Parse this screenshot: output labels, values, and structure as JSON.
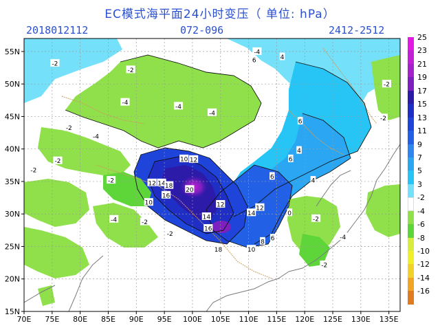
{
  "title": "EC模式海平面24小时变压（ 单位: hPa）",
  "init_time": "2018012112",
  "forecast_hours": "072-096",
  "valid_range": "2412-2512",
  "lat_labels": [
    "55N",
    "50N",
    "45N",
    "40N",
    "35N",
    "30N",
    "25N",
    "20N",
    "15N"
  ],
  "lon_labels": [
    "70E",
    "75E",
    "80E",
    "85E",
    "90E",
    "95E",
    "100E",
    "105E",
    "110E",
    "115E",
    "120E",
    "125E",
    "130E",
    "135E"
  ],
  "colorbar": [
    {
      "label": "25",
      "color": "#e31ae3"
    },
    {
      "label": "23",
      "color": "#c21fd6"
    },
    {
      "label": "21",
      "color": "#a322c9"
    },
    {
      "label": "19",
      "color": "#7e1fbf"
    },
    {
      "label": "17",
      "color": "#2c1aa8"
    },
    {
      "label": "15",
      "color": "#1f2fc6"
    },
    {
      "label": "13",
      "color": "#1e44d9"
    },
    {
      "label": "11",
      "color": "#2260e6"
    },
    {
      "label": "9",
      "color": "#2f86ee"
    },
    {
      "label": "7",
      "color": "#2aa6f3"
    },
    {
      "label": "5",
      "color": "#27c4f6"
    },
    {
      "label": "3",
      "color": "#74e0fa"
    },
    {
      "label": "-2",
      "color": "#ffffff"
    },
    {
      "label": "-4",
      "color": "#8fe04a"
    },
    {
      "label": "-6",
      "color": "#5ed63a"
    },
    {
      "label": "-8",
      "color": "#d7ec3c"
    },
    {
      "label": "-10",
      "color": "#f2ee2a"
    },
    {
      "label": "-12",
      "color": "#f2d22a"
    },
    {
      "label": "-14",
      "color": "#f0a526"
    },
    {
      "label": "-16",
      "color": "#e07b22"
    }
  ],
  "contour_labels": [
    {
      "text": "10",
      "lon": 98.5,
      "lat": 38.5
    },
    {
      "text": "12",
      "lon": 100.2,
      "lat": 38.4
    },
    {
      "text": "12",
      "lon": 92.8,
      "lat": 34.8
    },
    {
      "text": "14",
      "lon": 94.5,
      "lat": 34.8
    },
    {
      "text": "18",
      "lon": 95.8,
      "lat": 34.4
    },
    {
      "text": "16",
      "lon": 95.3,
      "lat": 32.9
    },
    {
      "text": "20",
      "lon": 99.5,
      "lat": 33.8
    },
    {
      "text": "10",
      "lon": 92.2,
      "lat": 31.8
    },
    {
      "text": "14",
      "lon": 102.5,
      "lat": 29.6
    },
    {
      "text": "16",
      "lon": 102.8,
      "lat": 27.8
    },
    {
      "text": "12",
      "lon": 105.0,
      "lat": 31.5
    },
    {
      "text": "14",
      "lon": 110.5,
      "lat": 30.2
    },
    {
      "text": "12",
      "lon": 112.0,
      "lat": 31.0
    },
    {
      "text": "18",
      "lon": 104.6,
      "lat": 24.6
    },
    {
      "text": "10",
      "lon": 110.5,
      "lat": 24.6
    },
    {
      "text": "6",
      "lon": 114.3,
      "lat": 26.3
    },
    {
      "text": "8",
      "lon": 112.5,
      "lat": 25.8
    },
    {
      "text": "6",
      "lon": 119.2,
      "lat": 44.3
    },
    {
      "text": "6",
      "lon": 114.2,
      "lat": 35.8
    },
    {
      "text": "4",
      "lon": 119.0,
      "lat": 39.8
    },
    {
      "text": "6",
      "lon": 117.5,
      "lat": 38.5
    },
    {
      "text": "6",
      "lon": 111.0,
      "lat": 53.7
    },
    {
      "text": "4",
      "lon": 116.0,
      "lat": 54.2
    },
    {
      "text": "-4",
      "lon": 111.5,
      "lat": 55.0
    },
    {
      "text": "-4",
      "lon": 88.0,
      "lat": 47.2
    },
    {
      "text": "-4",
      "lon": 97.5,
      "lat": 46.6
    },
    {
      "text": "-4",
      "lon": 103.5,
      "lat": 45.6
    },
    {
      "text": "-2",
      "lon": 89.0,
      "lat": 52.2
    },
    {
      "text": "-2",
      "lon": 78.0,
      "lat": 43.3
    },
    {
      "text": "-2",
      "lon": 85.5,
      "lat": 35.2
    },
    {
      "text": "-4",
      "lon": 86.0,
      "lat": 29.2
    },
    {
      "text": "-2",
      "lon": 76.0,
      "lat": 38.2
    },
    {
      "text": "-4",
      "lon": 82.8,
      "lat": 42.0
    },
    {
      "text": "-2",
      "lon": 96.0,
      "lat": 27.0
    },
    {
      "text": "-2",
      "lon": 91.5,
      "lat": 28.8
    },
    {
      "text": "-2",
      "lon": 122.0,
      "lat": 29.3
    },
    {
      "text": "-2",
      "lon": 123.5,
      "lat": 22.2
    },
    {
      "text": "-4",
      "lon": 126.8,
      "lat": 26.5
    },
    {
      "text": "-2",
      "lon": 134.6,
      "lat": 50.0
    },
    {
      "text": "-2",
      "lon": 134.0,
      "lat": 44.8
    },
    {
      "text": "-2",
      "lon": 71.7,
      "lat": 36.8
    },
    {
      "text": "0",
      "lon": 117.3,
      "lat": 30.2
    },
    {
      "text": "4",
      "lon": 121.5,
      "lat": 35.2
    },
    {
      "text": "-2",
      "lon": 75.5,
      "lat": 53.2
    }
  ]
}
